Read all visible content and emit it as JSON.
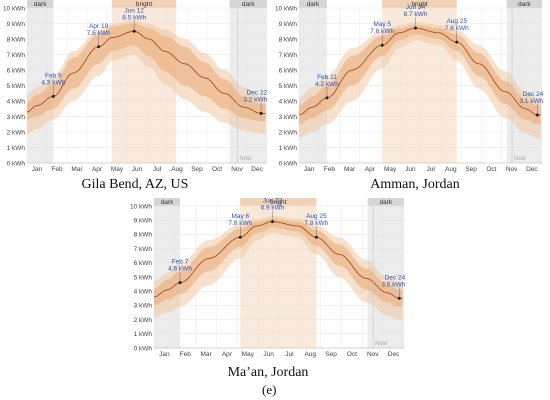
{
  "figure_label": "(e)",
  "chart_data": [
    {
      "type": "area",
      "caption": "Gila Bend, AZ, US",
      "y_unit": "kWh",
      "yticks": [
        "0 kWh",
        "1 kWh",
        "2 kWh",
        "3 kWh",
        "4 kWh",
        "5 kWh",
        "6 kWh",
        "7 kWh",
        "8 kWh",
        "9 kWh",
        "10 kWh"
      ],
      "ylim": [
        0,
        10
      ],
      "months": [
        "Jan",
        "Feb",
        "Mar",
        "Apr",
        "May",
        "Jun",
        "Jul",
        "Aug",
        "Sep",
        "Oct",
        "Nov",
        "Dec"
      ],
      "bands": [
        {
          "label": "dark",
          "start_day": 0,
          "end_day": 40
        },
        {
          "label": "bright",
          "start_day": 129,
          "end_day": 227
        },
        {
          "label": "dark",
          "start_day": 308,
          "end_day": 365
        }
      ],
      "now_label": "Now",
      "now_day": 320,
      "series": {
        "x": [
          0,
          15,
          40,
          70,
          109,
          130,
          163,
          185,
          210,
          240,
          270,
          300,
          330,
          356,
          365
        ],
        "y": [
          3.3,
          3.7,
          4.3,
          5.8,
          7.5,
          8.1,
          8.5,
          8.0,
          7.2,
          6.4,
          5.5,
          4.5,
          3.6,
          3.2,
          3.2
        ],
        "low": [
          2.8,
          3.0,
          3.5,
          4.8,
          6.4,
          7.2,
          7.6,
          6.9,
          5.9,
          5.0,
          4.3,
          3.5,
          2.9,
          2.7,
          2.7
        ],
        "high": [
          3.9,
          4.4,
          5.1,
          6.8,
          8.3,
          8.8,
          9.0,
          8.7,
          8.2,
          7.5,
          6.5,
          5.4,
          4.3,
          3.8,
          3.8
        ],
        "p10": [
          1.9,
          2.2,
          2.8,
          4.0,
          5.6,
          6.6,
          7.0,
          6.2,
          5.1,
          4.1,
          3.3,
          2.6,
          2.1,
          1.9,
          1.9
        ],
        "p90": [
          4.4,
          4.9,
          5.6,
          7.2,
          8.6,
          9.0,
          9.2,
          9.0,
          8.6,
          8.0,
          7.1,
          6.0,
          4.9,
          4.3,
          4.3
        ]
      },
      "annotations": [
        {
          "day": 40,
          "value": 4.3,
          "date": "Feb 9",
          "text": "4.3 kWh"
        },
        {
          "day": 109,
          "value": 7.5,
          "date": "Apr 19",
          "text": "7.5 kWh"
        },
        {
          "day": 163,
          "value": 8.5,
          "date": "Jun 12",
          "text": "8.5 kWh"
        },
        {
          "day": 356,
          "value": 3.2,
          "date": "Dec 22",
          "text": "3.2 kWh"
        }
      ]
    },
    {
      "type": "area",
      "caption": "Amman, Jordan",
      "y_unit": "kWh",
      "yticks": [
        "0 kWh",
        "1 kWh",
        "2 kWh",
        "3 kWh",
        "4 kWh",
        "5 kWh",
        "6 kWh",
        "7 kWh",
        "8 kWh",
        "9 kWh",
        "10 kWh"
      ],
      "ylim": [
        0,
        10
      ],
      "months": [
        "Jan",
        "Feb",
        "Mar",
        "Apr",
        "May",
        "Jun",
        "Jul",
        "Aug",
        "Sep",
        "Oct",
        "Nov",
        "Dec"
      ],
      "bands": [
        {
          "label": "dark",
          "start_day": 0,
          "end_day": 42
        },
        {
          "label": "bright",
          "start_day": 125,
          "end_day": 237
        },
        {
          "label": "dark",
          "start_day": 312,
          "end_day": 365
        }
      ],
      "now_label": "Now",
      "now_day": 320,
      "series": {
        "x": [
          0,
          20,
          42,
          80,
          125,
          150,
          175,
          210,
          237,
          270,
          310,
          340,
          358,
          365
        ],
        "y": [
          3.1,
          3.6,
          4.2,
          6.0,
          7.6,
          8.4,
          8.7,
          8.4,
          7.8,
          6.4,
          4.6,
          3.5,
          3.1,
          3.1
        ],
        "low": [
          2.5,
          2.9,
          3.4,
          5.0,
          6.9,
          7.9,
          8.3,
          8.0,
          7.2,
          5.6,
          3.8,
          2.8,
          2.5,
          2.5
        ],
        "high": [
          3.7,
          4.3,
          5.0,
          6.9,
          8.2,
          8.7,
          8.9,
          8.7,
          8.3,
          7.1,
          5.3,
          4.1,
          3.7,
          3.7
        ],
        "p10": [
          1.6,
          2.0,
          2.5,
          4.0,
          6.1,
          7.4,
          7.9,
          7.6,
          6.6,
          4.8,
          2.9,
          1.9,
          1.6,
          1.6
        ],
        "p90": [
          4.2,
          4.9,
          5.6,
          7.4,
          8.5,
          8.9,
          9.1,
          8.9,
          8.6,
          7.6,
          5.9,
          4.6,
          4.2,
          4.2
        ]
      },
      "annotations": [
        {
          "day": 42,
          "value": 4.2,
          "date": "Feb 11",
          "text": "4.2 kWh"
        },
        {
          "day": 125,
          "value": 7.6,
          "date": "May 5",
          "text": "7.6 kWh"
        },
        {
          "day": 175,
          "value": 8.7,
          "date": "Jun 24",
          "text": "8.7 kWh"
        },
        {
          "day": 237,
          "value": 7.8,
          "date": "Aug 25",
          "text": "7.8 kWh"
        },
        {
          "day": 358,
          "value": 3.1,
          "date": "Dec 24",
          "text": "3.1 kWh"
        }
      ]
    },
    {
      "type": "area",
      "caption": "Ma’an, Jordan",
      "y_unit": "kWh",
      "yticks": [
        "0 kWh",
        "1 kWh",
        "2 kWh",
        "3 kWh",
        "4 kWh",
        "5 kWh",
        "6 kWh",
        "7 kWh",
        "8 kWh",
        "9 kWh",
        "10 kWh"
      ],
      "ylim": [
        0,
        10
      ],
      "months": [
        "Jan",
        "Feb",
        "Mar",
        "Apr",
        "May",
        "Jun",
        "Jul",
        "Aug",
        "Sep",
        "Oct",
        "Nov",
        "Dec"
      ],
      "bands": [
        {
          "label": "dark",
          "start_day": 0,
          "end_day": 38
        },
        {
          "label": "bright",
          "start_day": 126,
          "end_day": 237
        },
        {
          "label": "dark",
          "start_day": 312,
          "end_day": 365
        }
      ],
      "now_label": "Now",
      "now_day": 320,
      "series": {
        "x": [
          0,
          20,
          38,
          80,
          126,
          150,
          173,
          210,
          237,
          270,
          310,
          340,
          358,
          365
        ],
        "y": [
          3.6,
          4.1,
          4.6,
          6.3,
          7.8,
          8.6,
          8.9,
          8.6,
          7.8,
          6.6,
          4.9,
          3.9,
          3.5,
          3.5
        ],
        "low": [
          3.0,
          3.4,
          3.8,
          5.4,
          7.1,
          8.1,
          8.5,
          8.2,
          7.2,
          5.8,
          4.1,
          3.2,
          2.9,
          2.9
        ],
        "high": [
          4.2,
          4.8,
          5.4,
          7.1,
          8.4,
          8.9,
          9.1,
          8.9,
          8.3,
          7.3,
          5.6,
          4.5,
          4.1,
          4.1
        ],
        "p10": [
          2.1,
          2.5,
          2.9,
          4.4,
          6.3,
          7.6,
          8.1,
          7.8,
          6.6,
          5.0,
          3.2,
          2.3,
          2.0,
          2.0
        ],
        "p90": [
          4.7,
          5.3,
          6.0,
          7.6,
          8.7,
          9.1,
          9.3,
          9.1,
          8.6,
          7.8,
          6.2,
          5.0,
          4.6,
          4.6
        ]
      },
      "annotations": [
        {
          "day": 38,
          "value": 4.6,
          "date": "Feb 7",
          "text": "4.6 kWh"
        },
        {
          "day": 126,
          "value": 7.8,
          "date": "May 6",
          "text": "7.8 kWh"
        },
        {
          "day": 173,
          "value": 8.9,
          "date": "Jun 22",
          "text": "8.9 kWh"
        },
        {
          "day": 237,
          "value": 7.8,
          "date": "Aug 25",
          "text": "7.8 kWh"
        },
        {
          "day": 358,
          "value": 3.5,
          "date": "Dec 24",
          "text": "3.5 kWh"
        }
      ]
    }
  ]
}
